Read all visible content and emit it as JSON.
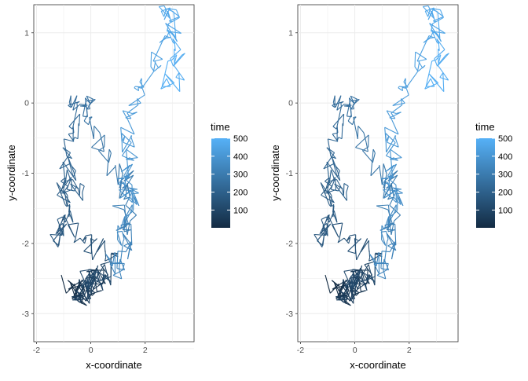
{
  "chart_data": [
    {
      "type": "line",
      "title": "",
      "xlabel": "x-coordinate",
      "ylabel": "y-coordinate",
      "xlim": [
        -2.1,
        3.8
      ],
      "ylim": [
        -3.4,
        1.4
      ],
      "x_ticks": [
        -2,
        0,
        2
      ],
      "y_ticks": [
        1,
        0,
        -1,
        -2,
        -3
      ],
      "grid": true,
      "legend": {
        "title": "time",
        "position": "right",
        "ticks": [
          100,
          200,
          300,
          400,
          500
        ],
        "range": [
          1,
          500
        ],
        "color_low": "#132B43",
        "color_high": "#56B1F7"
      },
      "path": {
        "n_points": 500,
        "waypoints": [
          [
            -2.6,
            1
          ],
          [
            -2.75,
            30
          ],
          [
            -2.45,
            55
          ],
          [
            -2.8,
            80
          ],
          [
            -2.4,
            100
          ],
          [
            -2.55,
            118
          ],
          [
            -2.3,
            128
          ],
          [
            -2.1,
            140
          ],
          [
            -1.9,
            152
          ],
          [
            -1.7,
            160
          ],
          [
            -1.95,
            168
          ],
          [
            -1.6,
            175
          ],
          [
            -1.4,
            185
          ],
          [
            -1.05,
            195
          ],
          [
            -1.35,
            203
          ],
          [
            -1.0,
            212
          ],
          [
            -0.8,
            222
          ],
          [
            -0.5,
            230
          ],
          [
            -0.2,
            238
          ],
          [
            0.05,
            245
          ],
          [
            -0.1,
            252
          ],
          [
            0.1,
            260
          ],
          [
            -0.3,
            268
          ],
          [
            -0.6,
            276
          ],
          [
            -1.0,
            285
          ],
          [
            -1.3,
            293
          ],
          [
            -1.0,
            300
          ],
          [
            -1.5,
            306
          ],
          [
            -1.8,
            310
          ],
          [
            -1.55,
            318
          ],
          [
            -1.9,
            325
          ],
          [
            -2.4,
            335
          ],
          [
            -2.2,
            345
          ],
          [
            -1.7,
            355
          ],
          [
            -1.4,
            365
          ],
          [
            -1.2,
            380
          ],
          [
            -0.8,
            395
          ],
          [
            -0.35,
            410
          ],
          [
            -0.05,
            420
          ],
          [
            0.3,
            430
          ],
          [
            0.7,
            440
          ],
          [
            1.0,
            450
          ],
          [
            1.2,
            458
          ],
          [
            1.4,
            466
          ],
          [
            1.0,
            475
          ],
          [
            0.5,
            483
          ],
          [
            0.2,
            490
          ],
          [
            0.8,
            500
          ]
        ],
        "x_waypoints": [
          [
            -0.8,
            1
          ],
          [
            -0.3,
            30
          ],
          [
            0.4,
            55
          ],
          [
            -0.6,
            80
          ],
          [
            0.6,
            100
          ],
          [
            -0.2,
            118
          ],
          [
            0.9,
            128
          ],
          [
            0.2,
            140
          ],
          [
            -0.5,
            152
          ],
          [
            -1.0,
            160
          ],
          [
            -1.4,
            168
          ],
          [
            -0.8,
            175
          ],
          [
            -1.1,
            185
          ],
          [
            -0.9,
            195
          ],
          [
            -0.4,
            203
          ],
          [
            -0.7,
            212
          ],
          [
            -0.9,
            222
          ],
          [
            -0.8,
            230
          ],
          [
            -0.5,
            238
          ],
          [
            -0.8,
            245
          ],
          [
            -0.2,
            252
          ],
          [
            0.1,
            260
          ],
          [
            -0.1,
            268
          ],
          [
            0.3,
            276
          ],
          [
            0.9,
            285
          ],
          [
            1.2,
            293
          ],
          [
            1.5,
            300
          ],
          [
            1.2,
            306
          ],
          [
            1.6,
            310
          ],
          [
            1.0,
            318
          ],
          [
            1.4,
            325
          ],
          [
            1.1,
            335
          ],
          [
            0.8,
            345
          ],
          [
            1.3,
            355
          ],
          [
            1.6,
            365
          ],
          [
            1.2,
            380
          ],
          [
            1.5,
            395
          ],
          [
            1.3,
            410
          ],
          [
            1.6,
            420
          ],
          [
            2.0,
            430
          ],
          [
            2.5,
            440
          ],
          [
            2.9,
            450
          ],
          [
            3.2,
            458
          ],
          [
            2.6,
            466
          ],
          [
            3.0,
            475
          ],
          [
            3.3,
            483
          ],
          [
            2.8,
            490
          ],
          [
            3.0,
            500
          ]
        ],
        "jitter": 0.18,
        "seed": 7
      }
    },
    {
      "type": "line",
      "title": "",
      "xlabel": "x-coordinate",
      "ylabel": "y-coordinate",
      "xlim": [
        -2.1,
        3.8
      ],
      "ylim": [
        -3.4,
        1.4
      ],
      "x_ticks": [
        -2,
        0,
        2
      ],
      "y_ticks": [
        1,
        0,
        -1,
        -2,
        -3
      ],
      "grid": true,
      "legend": {
        "title": "time",
        "position": "right",
        "ticks": [
          100,
          200,
          300,
          400,
          500
        ],
        "range": [
          1,
          500
        ],
        "color_low": "#132B43",
        "color_high": "#56B1F7"
      },
      "path": "same as first panel"
    }
  ]
}
